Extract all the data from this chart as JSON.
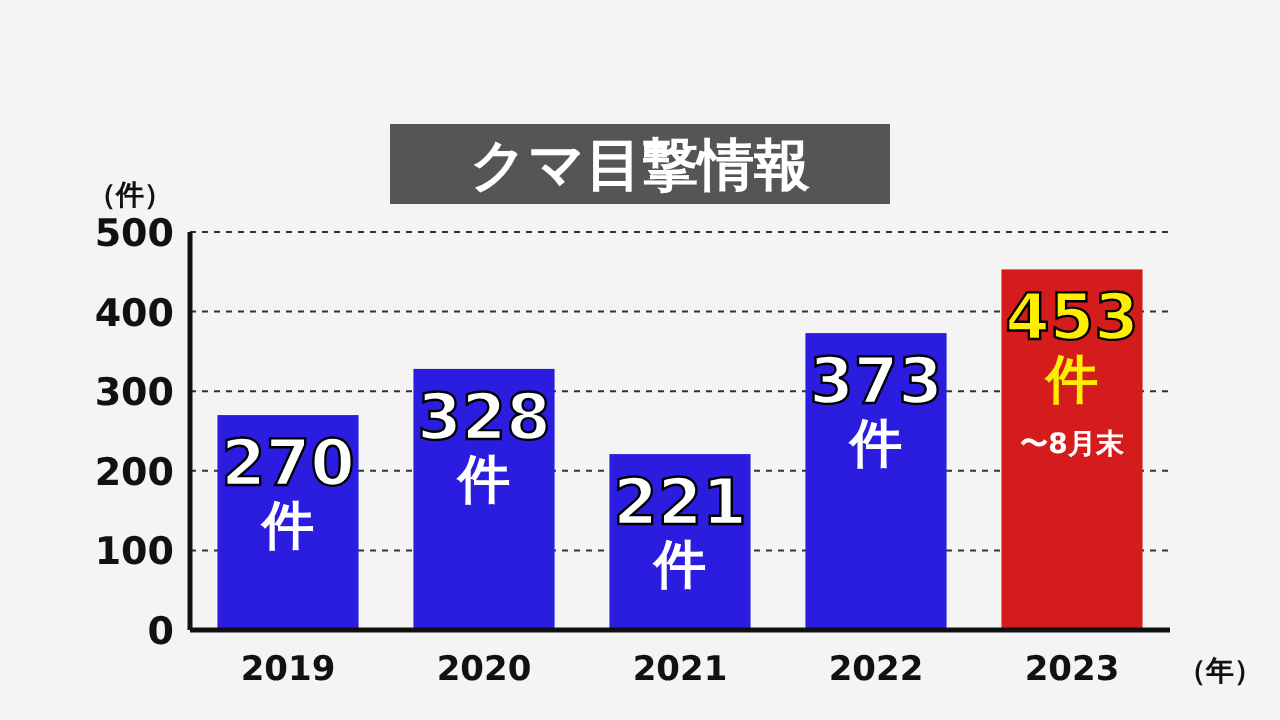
{
  "chart_data": {
    "type": "bar",
    "title": "クマ目撃情報",
    "ylabel": "（件）",
    "xlabel": "（年）",
    "categories": [
      "2019",
      "2020",
      "2021",
      "2022",
      "2023"
    ],
    "values": [
      270,
      328,
      221,
      373,
      453
    ],
    "colors": [
      "#2a1de0",
      "#2a1de0",
      "#2a1de0",
      "#2a1de0",
      "#d41c1c"
    ],
    "ylim": [
      0,
      500
    ],
    "yticks": [
      0,
      100,
      200,
      300,
      400,
      500
    ],
    "grid": "y",
    "data_labels": true,
    "annotations": [
      {
        "text": "件",
        "x": "2019",
        "y": 270
      },
      {
        "text": "件",
        "x": "2020",
        "y": 328
      },
      {
        "text": "件",
        "x": "2021",
        "y": 221
      },
      {
        "text": "件",
        "x": "2022",
        "y": 373
      },
      {
        "text": "件",
        "x": "2023",
        "y": 453
      },
      "〜8月末"
    ]
  }
}
